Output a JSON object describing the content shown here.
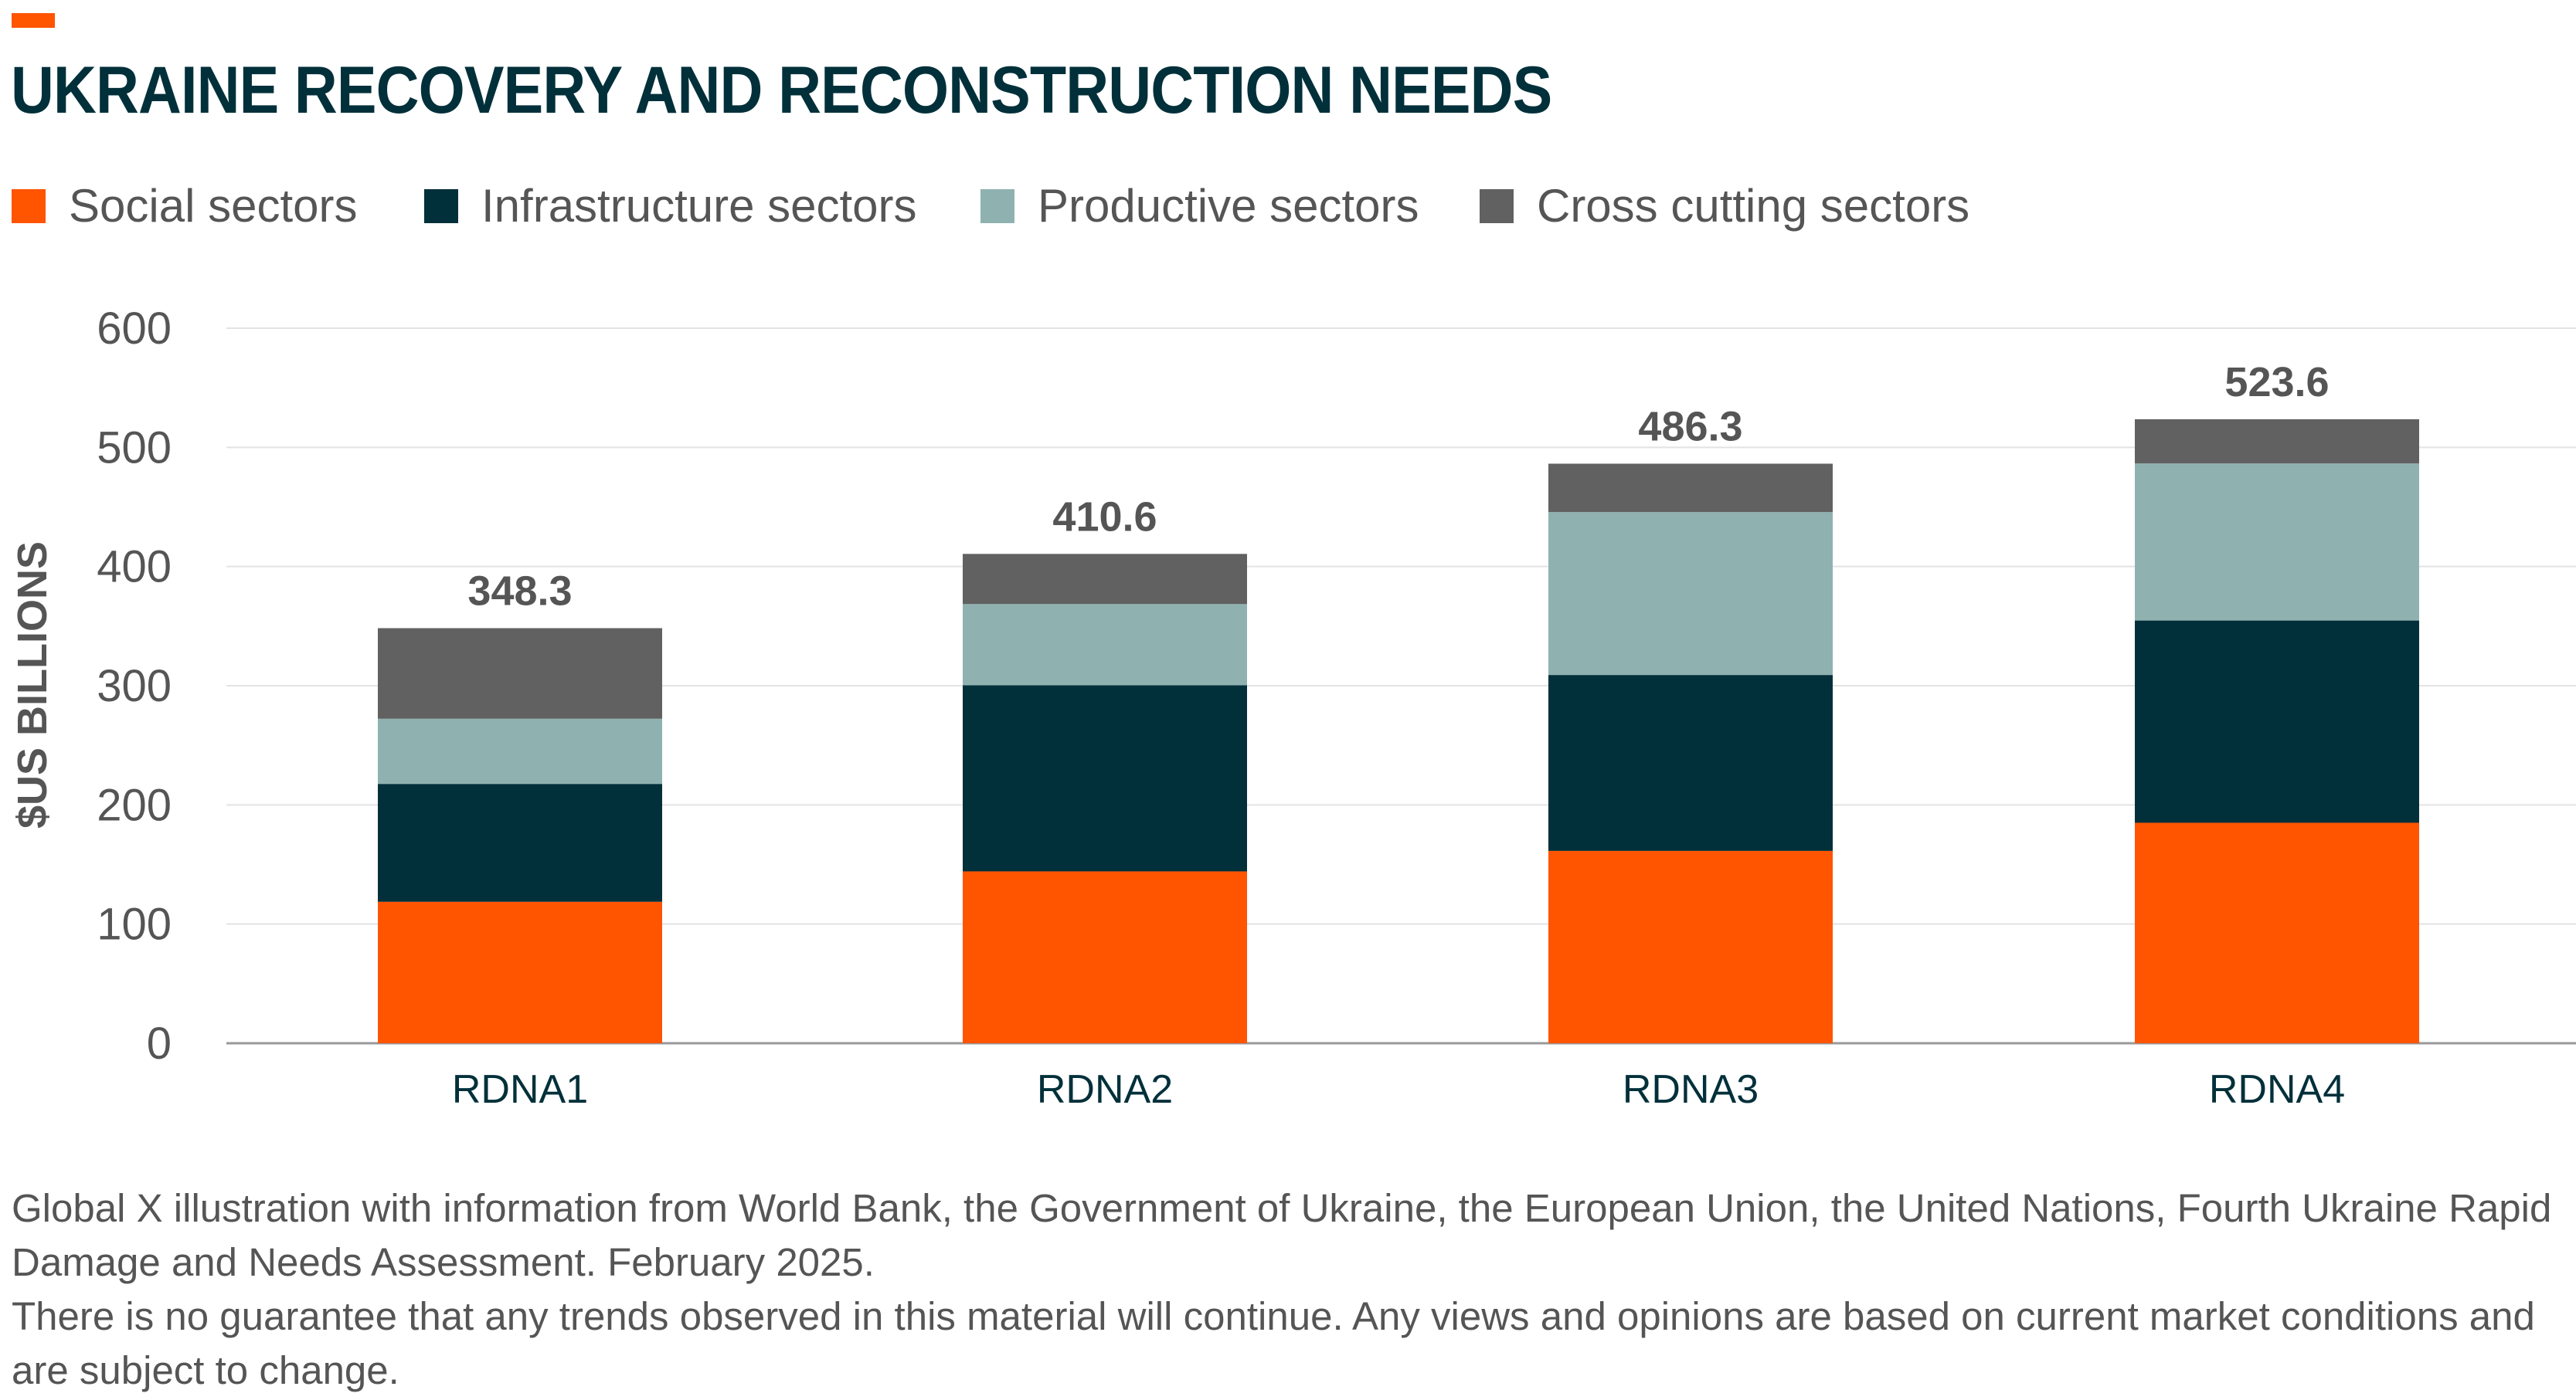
{
  "title": "UKRAINE RECOVERY AND RECONSTRUCTION NEEDS",
  "chart_data": {
    "type": "bar",
    "stacked": true,
    "title": "UKRAINE RECOVERY AND RECONSTRUCTION NEEDS",
    "xlabel": "",
    "ylabel": "$US BILLIONS",
    "ylim": [
      0,
      600
    ],
    "yticks": [
      0,
      100,
      200,
      300,
      400,
      500,
      600
    ],
    "grid": true,
    "legend_position": "top-left",
    "categories": [
      "RDNA1",
      "RDNA2",
      "RDNA3",
      "RDNA4"
    ],
    "series": [
      {
        "name": "Social sectors",
        "color": "#ff5400",
        "values": [
          118.7,
          144.2,
          161.4,
          185.0
        ]
      },
      {
        "name": "Infrastructure sectors",
        "color": "#02303a",
        "values": [
          98.9,
          156.2,
          147.6,
          169.7
        ]
      },
      {
        "name": "Productive sectors",
        "color": "#8fb2b1",
        "values": [
          54.7,
          68.1,
          136.7,
          131.8
        ]
      },
      {
        "name": "Cross cutting sectors",
        "color": "#616161",
        "values": [
          76.0,
          42.1,
          40.6,
          37.1
        ]
      }
    ],
    "totals": [
      "348.3",
      "410.6",
      "486.3",
      "523.6"
    ]
  },
  "footnote": [
    "Global X illustration with information from World Bank, the Government of Ukraine, the European Union, the United Nations, Fourth Ukraine Rapid Damage and Needs Assessment. February 2025.",
    "There is no guarantee that any trends observed in this material will continue. Any views and opinions are based on current market conditions and are subject to change."
  ]
}
